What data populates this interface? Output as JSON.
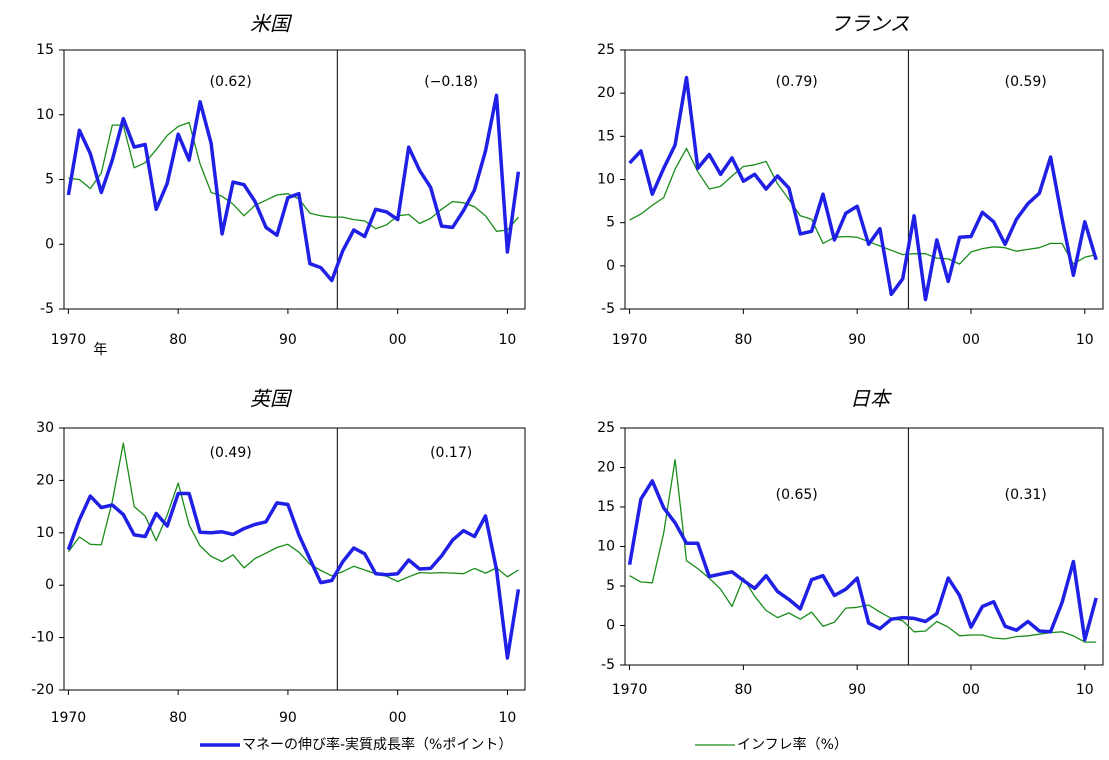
{
  "chart_data": [
    {
      "type": "line",
      "title": "米国",
      "x_unit_label": "年",
      "x": [
        1970,
        1971,
        1972,
        1973,
        1974,
        1975,
        1976,
        1977,
        1978,
        1979,
        1980,
        1981,
        1982,
        1983,
        1984,
        1985,
        1986,
        1987,
        1988,
        1989,
        1990,
        1991,
        1992,
        1993,
        1994,
        1995,
        1996,
        1997,
        1998,
        1999,
        2000,
        2001,
        2002,
        2003,
        2004,
        2005,
        2006,
        2007,
        2008,
        2009,
        2010,
        2011
      ],
      "series": [
        {
          "name": "マネーの伸び率-実質成長率（%ポイント）",
          "color": "#1f1fe6",
          "values": [
            3.8,
            8.8,
            7.0,
            4.0,
            6.5,
            9.7,
            7.5,
            7.7,
            2.7,
            4.7,
            8.5,
            6.5,
            11.0,
            7.8,
            0.8,
            4.8,
            4.6,
            3.3,
            1.3,
            0.7,
            3.6,
            3.9,
            -1.5,
            -1.8,
            -2.8,
            -0.5,
            1.1,
            0.6,
            2.7,
            2.5,
            1.9,
            7.5,
            5.7,
            4.4,
            1.4,
            1.3,
            2.6,
            4.2,
            7.2,
            11.5,
            -0.6,
            5.6
          ]
        },
        {
          "name": "インフレ率（%）",
          "color": "#1a8c1a",
          "values": [
            5.1,
            5.0,
            4.3,
            5.5,
            9.2,
            9.2,
            5.9,
            6.3,
            7.3,
            8.4,
            9.1,
            9.4,
            6.2,
            4.0,
            3.7,
            3.1,
            2.2,
            3.0,
            3.4,
            3.8,
            3.9,
            3.5,
            2.4,
            2.2,
            2.1,
            2.1,
            1.9,
            1.8,
            1.2,
            1.5,
            2.2,
            2.3,
            1.6,
            2.0,
            2.7,
            3.3,
            3.2,
            2.9,
            2.2,
            1.0,
            1.1,
            2.1
          ]
        }
      ],
      "annotations": [
        "(0.62)",
        "(−0.18)"
      ],
      "divider_x": 1994.5,
      "xlim": [
        1969.6,
        2011.6
      ],
      "xticks": [
        1970,
        {
          "value": 1980,
          "label": "80"
        },
        {
          "value": 1990,
          "label": "90"
        },
        {
          "value": 2000,
          "label": "00"
        },
        {
          "value": 2010,
          "label": "10"
        }
      ],
      "ylim": [
        -5,
        15
      ],
      "yticks": [
        -5,
        0,
        5,
        10,
        15
      ]
    },
    {
      "type": "line",
      "title": "フランス",
      "x": [
        1970,
        1971,
        1972,
        1973,
        1974,
        1975,
        1976,
        1977,
        1978,
        1979,
        1980,
        1981,
        1982,
        1983,
        1984,
        1985,
        1986,
        1987,
        1988,
        1989,
        1990,
        1991,
        1992,
        1993,
        1994,
        1995,
        1996,
        1997,
        1998,
        1999,
        2000,
        2001,
        2002,
        2003,
        2004,
        2005,
        2006,
        2007,
        2008,
        2009,
        2010,
        2011
      ],
      "series": [
        {
          "color": "#1f1fe6",
          "values": [
            11.9,
            13.3,
            8.3,
            11.3,
            14.0,
            21.8,
            11.3,
            12.9,
            10.6,
            12.5,
            9.8,
            10.6,
            8.9,
            10.4,
            9.0,
            3.7,
            4.0,
            8.3,
            3.0,
            6.1,
            6.9,
            2.5,
            4.3,
            -3.3,
            -1.5,
            5.8,
            -3.9,
            3.0,
            -1.8,
            3.3,
            3.4,
            6.2,
            5.1,
            2.5,
            5.4,
            7.2,
            8.4,
            12.6,
            5.5,
            -1.1,
            5.1,
            0.7
          ]
        },
        {
          "color": "#1a8c1a",
          "values": [
            5.3,
            6.0,
            7.0,
            7.9,
            11.2,
            13.6,
            10.9,
            8.9,
            9.2,
            10.4,
            11.5,
            11.7,
            12.1,
            9.5,
            7.7,
            5.8,
            5.4,
            2.6,
            3.3,
            3.4,
            3.3,
            2.8,
            2.3,
            1.8,
            1.3,
            1.4,
            1.4,
            0.9,
            0.8,
            0.2,
            1.6,
            2.0,
            2.2,
            2.1,
            1.7,
            1.9,
            2.1,
            2.6,
            2.6,
            0.2,
            1.0,
            1.3
          ]
        }
      ],
      "annotations": [
        "(0.79)",
        "(0.59)"
      ],
      "divider_x": 1994.5,
      "xlim": [
        1969.6,
        2011.6
      ],
      "xticks": [
        1970,
        {
          "value": 1980,
          "label": "80"
        },
        {
          "value": 1990,
          "label": "90"
        },
        {
          "value": 2000,
          "label": "00"
        },
        {
          "value": 2010,
          "label": "10"
        }
      ],
      "ylim": [
        -5,
        25
      ],
      "yticks": [
        -5,
        0,
        5,
        10,
        15,
        20,
        25
      ]
    },
    {
      "type": "line",
      "title": "英国",
      "x": [
        1970,
        1971,
        1972,
        1973,
        1974,
        1975,
        1976,
        1977,
        1978,
        1979,
        1980,
        1981,
        1982,
        1983,
        1984,
        1985,
        1986,
        1987,
        1988,
        1989,
        1990,
        1991,
        1992,
        1993,
        1994,
        1995,
        1996,
        1997,
        1998,
        1999,
        2000,
        2001,
        2002,
        2003,
        2004,
        2005,
        2006,
        2007,
        2008,
        2009,
        2010,
        2011
      ],
      "series": [
        {
          "color": "#1f1fe6",
          "values": [
            6.8,
            12.5,
            17.0,
            14.8,
            15.3,
            13.5,
            9.6,
            9.3,
            13.7,
            11.3,
            17.5,
            17.5,
            10.1,
            10.0,
            10.2,
            9.7,
            10.8,
            11.6,
            12.1,
            15.7,
            15.4,
            9.6,
            5.0,
            0.5,
            0.9,
            4.5,
            7.1,
            6.0,
            2.2,
            2.0,
            2.2,
            4.8,
            3.1,
            3.2,
            5.6,
            8.6,
            10.4,
            9.3,
            13.2,
            3.0,
            -13.9,
            -0.8
          ]
        },
        {
          "color": "#1a8c1a",
          "values": [
            6.4,
            9.2,
            7.8,
            7.7,
            16.0,
            27.1,
            15.0,
            13.2,
            8.5,
            13.4,
            19.5,
            11.5,
            7.5,
            5.5,
            4.5,
            5.8,
            3.3,
            5.1,
            6.1,
            7.2,
            7.8,
            6.3,
            4.0,
            2.8,
            1.8,
            2.6,
            3.6,
            2.9,
            2.2,
            1.7,
            0.7,
            1.6,
            2.4,
            2.3,
            2.4,
            2.3,
            2.2,
            3.2,
            2.3,
            3.3,
            1.6,
            2.9
          ]
        }
      ],
      "annotations": [
        "(0.49)",
        "(0.17)"
      ],
      "divider_x": 1994.5,
      "xlim": [
        1969.6,
        2011.6
      ],
      "xticks": [
        1970,
        {
          "value": 1980,
          "label": "80"
        },
        {
          "value": 1990,
          "label": "90"
        },
        {
          "value": 2000,
          "label": "00"
        },
        {
          "value": 2010,
          "label": "10"
        }
      ],
      "ylim": [
        -20,
        30
      ],
      "yticks": [
        -20,
        -10,
        0,
        10,
        20,
        30
      ]
    },
    {
      "type": "line",
      "title": "日本",
      "x": [
        1970,
        1971,
        1972,
        1973,
        1974,
        1975,
        1976,
        1977,
        1978,
        1979,
        1980,
        1981,
        1982,
        1983,
        1984,
        1985,
        1986,
        1987,
        1988,
        1989,
        1990,
        1991,
        1992,
        1993,
        1994,
        1995,
        1996,
        1997,
        1998,
        1999,
        2000,
        2001,
        2002,
        2003,
        2004,
        2005,
        2006,
        2007,
        2008,
        2009,
        2010,
        2011
      ],
      "series": [
        {
          "color": "#1f1fe6",
          "values": [
            7.7,
            16.0,
            18.3,
            14.9,
            13.0,
            10.4,
            10.4,
            6.2,
            6.5,
            6.8,
            5.7,
            4.7,
            6.3,
            4.3,
            3.3,
            2.1,
            5.8,
            6.3,
            3.8,
            4.6,
            6.0,
            0.3,
            -0.4,
            0.8,
            1.0,
            0.9,
            0.5,
            1.5,
            6.0,
            3.8,
            -0.2,
            2.4,
            3.0,
            -0.1,
            -0.6,
            0.5,
            -0.7,
            -0.8,
            2.9,
            8.1,
            -1.8,
            3.5
          ]
        },
        {
          "color": "#1a8c1a",
          "values": [
            6.3,
            5.5,
            5.4,
            11.7,
            21.0,
            8.2,
            7.2,
            6.0,
            4.6,
            2.4,
            6.0,
            3.7,
            1.9,
            1.0,
            1.6,
            0.8,
            1.7,
            -0.1,
            0.4,
            2.2,
            2.3,
            2.6,
            1.7,
            0.9,
            0.6,
            -0.8,
            -0.7,
            0.5,
            -0.2,
            -1.3,
            -1.2,
            -1.2,
            -1.6,
            -1.7,
            -1.4,
            -1.3,
            -1.1,
            -0.9,
            -0.8,
            -1.3,
            -2.1,
            -2.1
          ]
        }
      ],
      "annotations": [
        "(0.65)",
        "(0.31)"
      ],
      "divider_x": 1994.5,
      "xlim": [
        1969.6,
        2011.6
      ],
      "xticks": [
        1970,
        {
          "value": 1980,
          "label": "80"
        },
        {
          "value": 1990,
          "label": "90"
        },
        {
          "value": 2000,
          "label": "00"
        },
        {
          "value": 2010,
          "label": "10"
        }
      ],
      "ylim": [
        -5,
        25
      ],
      "yticks": [
        -5,
        0,
        5,
        10,
        15,
        20,
        25
      ]
    }
  ]
}
